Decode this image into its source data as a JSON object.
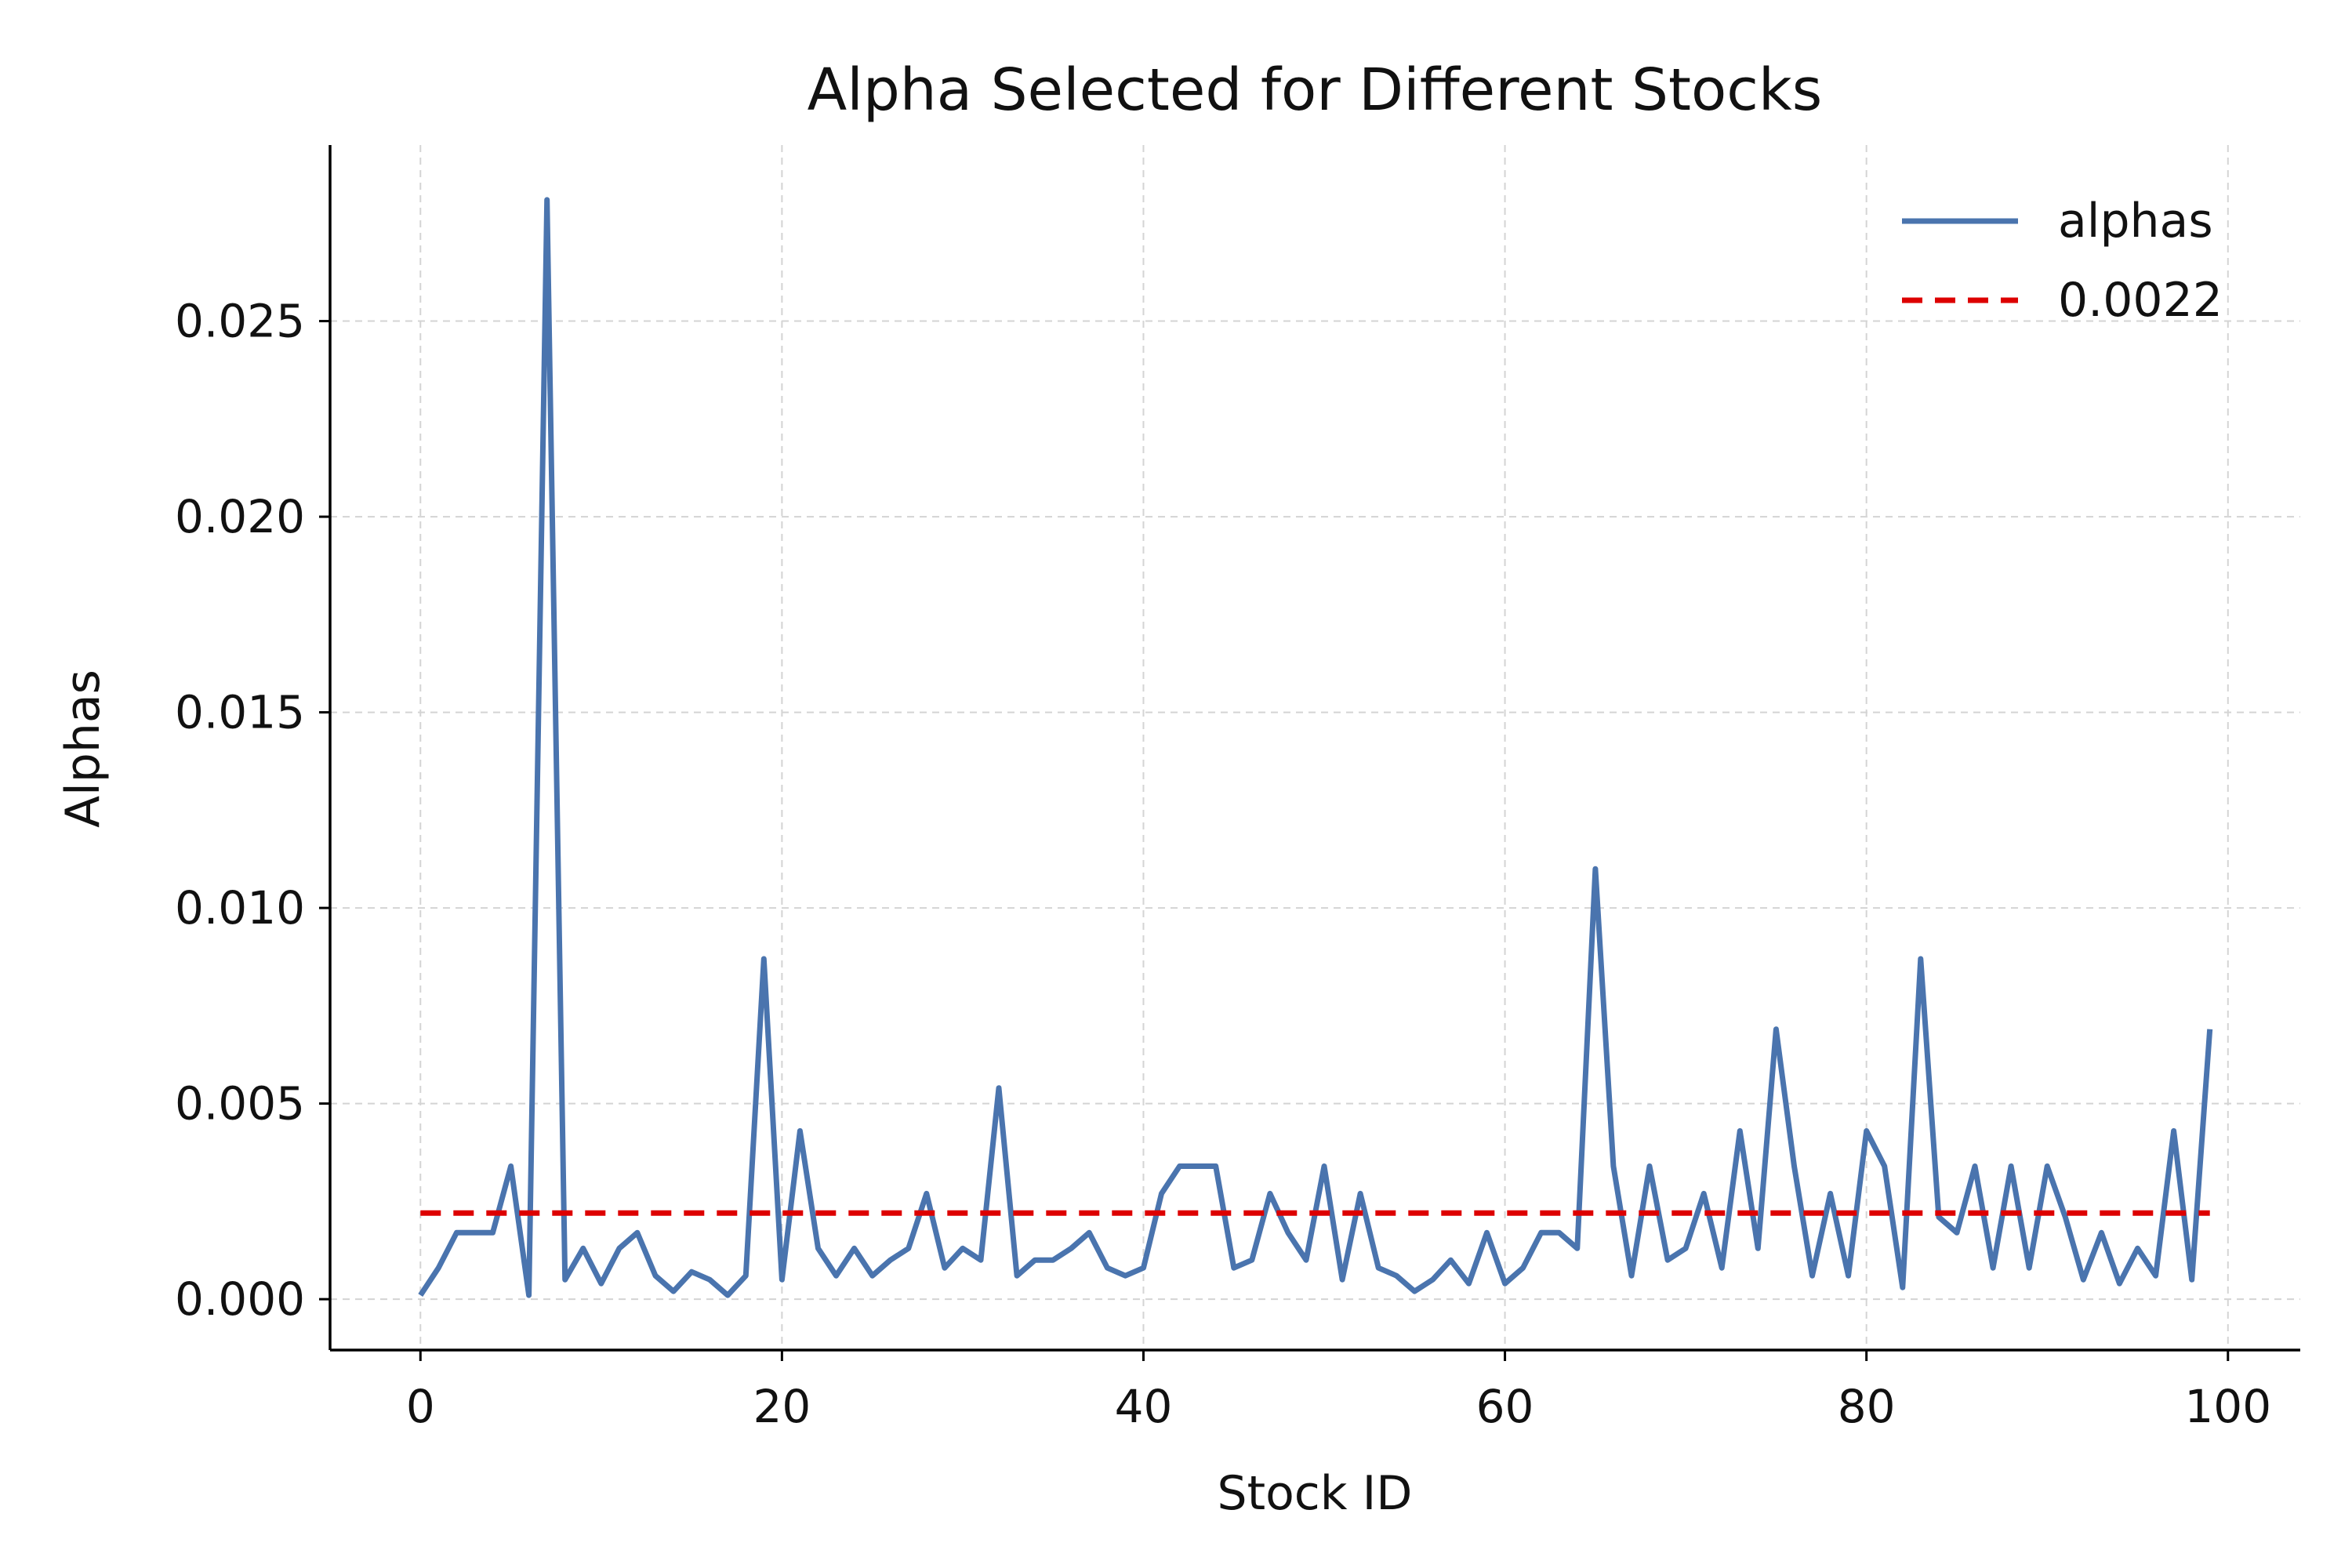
{
  "chart_data": {
    "type": "line",
    "title": "Alpha Selected for Different Stocks",
    "xlabel": "Stock ID",
    "ylabel": "Alphas",
    "xlim": [
      -5,
      104
    ],
    "ylim": [
      -0.0013,
      0.0295
    ],
    "xticks": [
      0,
      20,
      40,
      60,
      80,
      100
    ],
    "xtick_labels": [
      "0",
      "20",
      "40",
      "60",
      "80",
      "100"
    ],
    "yticks": [
      0.0,
      0.005,
      0.01,
      0.015,
      0.02,
      0.025
    ],
    "ytick_labels": [
      "0.000",
      "0.005",
      "0.010",
      "0.015",
      "0.020",
      "0.025"
    ],
    "grid": true,
    "legend_position": "top-right",
    "series": [
      {
        "name": "alphas",
        "style": "solid",
        "color": "#4a74ae",
        "x": [
          0,
          1,
          2,
          3,
          4,
          5,
          6,
          7,
          8,
          9,
          10,
          11,
          12,
          13,
          14,
          15,
          16,
          17,
          18,
          19,
          20,
          21,
          22,
          23,
          24,
          25,
          26,
          27,
          28,
          29,
          30,
          31,
          32,
          33,
          34,
          35,
          36,
          37,
          38,
          39,
          40,
          41,
          42,
          43,
          44,
          45,
          46,
          47,
          48,
          49,
          50,
          51,
          52,
          53,
          54,
          55,
          56,
          57,
          58,
          59,
          60,
          61,
          62,
          63,
          64,
          65,
          66,
          67,
          68,
          69,
          70,
          71,
          72,
          73,
          74,
          75,
          76,
          77,
          78,
          79,
          80,
          81,
          82,
          83,
          84,
          85,
          86,
          87,
          88,
          89,
          90,
          91,
          92,
          93,
          94,
          95,
          96,
          97,
          98,
          99
        ],
        "values": [
          0.0001,
          0.0008,
          0.0017,
          0.0017,
          0.0017,
          0.0034,
          0.0001,
          0.0281,
          0.0005,
          0.0013,
          0.0004,
          0.0013,
          0.0017,
          0.0006,
          0.0002,
          0.0007,
          0.0005,
          0.0001,
          0.0006,
          0.0087,
          0.0005,
          0.0043,
          0.0013,
          0.0006,
          0.0013,
          0.0006,
          0.001,
          0.0013,
          0.0027,
          0.0008,
          0.0013,
          0.001,
          0.0054,
          0.0006,
          0.001,
          0.001,
          0.0013,
          0.0017,
          0.0008,
          0.0006,
          0.0008,
          0.0027,
          0.0034,
          0.0034,
          0.0034,
          0.0008,
          0.001,
          0.0027,
          0.0017,
          0.001,
          0.0034,
          0.0005,
          0.0027,
          0.0008,
          0.0006,
          0.0002,
          0.0005,
          0.001,
          0.0004,
          0.0017,
          0.0004,
          0.0008,
          0.0017,
          0.0017,
          0.0013,
          0.011,
          0.0034,
          0.0006,
          0.0034,
          0.001,
          0.0013,
          0.0027,
          0.0008,
          0.0043,
          0.0013,
          0.0069,
          0.0034,
          0.0006,
          0.0027,
          0.0006,
          0.0043,
          0.0034,
          0.0003,
          0.0087,
          0.0021,
          0.0017,
          0.0034,
          0.0008,
          0.0034,
          0.0008,
          0.0034,
          0.0021,
          0.0005,
          0.0017,
          0.0004,
          0.0013,
          0.0006,
          0.0043,
          0.0005,
          0.0069
        ]
      },
      {
        "name": "0.0022",
        "style": "dashed",
        "color": "#dd0000",
        "x": [
          0,
          99
        ],
        "values": [
          0.0022,
          0.0022
        ]
      }
    ]
  }
}
